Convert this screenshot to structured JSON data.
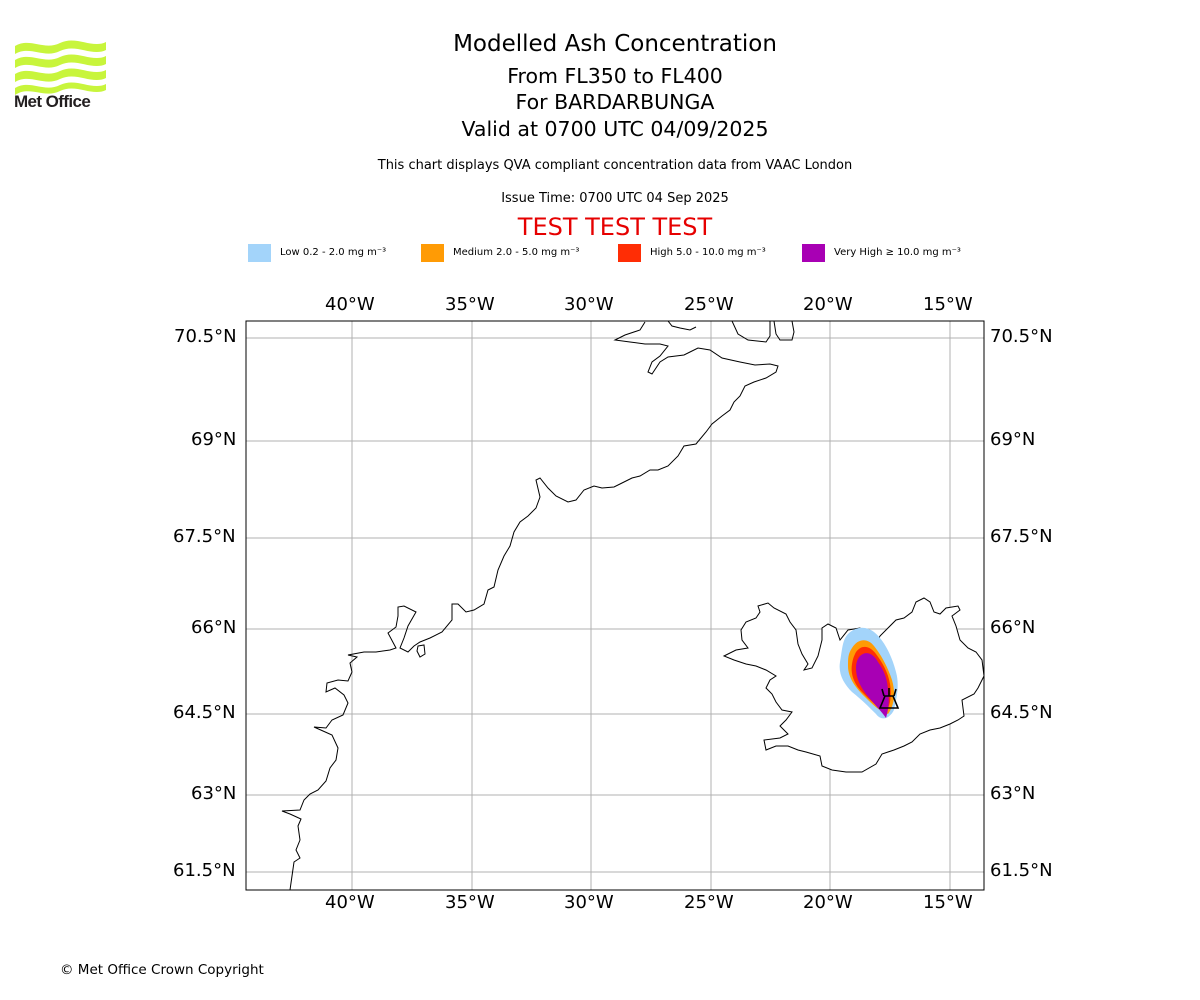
{
  "logo": {
    "brand_text": "Met Office",
    "wave_color": "#c8f53c",
    "text_color": "#231f20"
  },
  "header": {
    "title": "Modelled Ash Concentration",
    "flight_levels": "From FL350 to FL400",
    "volcano": "For BARDARBUNGA",
    "valid_time": "Valid at 0700 UTC 04/09/2025",
    "description": "This chart displays QVA compliant concentration data from VAAC London",
    "issue_time": "Issue Time: 0700 UTC 04 Sep 2025",
    "test_banner": "TEST TEST TEST",
    "test_banner_color": "#e60000"
  },
  "legend": [
    {
      "label": "Low 0.2 - 2.0 mg m⁻³",
      "color": "#a3d4fa"
    },
    {
      "label": "Medium 2.0 - 5.0 mg m⁻³",
      "color": "#ff9b05"
    },
    {
      "label": "High 5.0 - 10.0 mg m⁻³",
      "color": "#ff2d05"
    },
    {
      "label": "Very High ≥ 10.0 mg m⁻³",
      "color": "#a800b4"
    }
  ],
  "map": {
    "longitude_ticks": [
      "40°W",
      "35°W",
      "30°W",
      "25°W",
      "20°W",
      "15°W"
    ],
    "latitude_ticks": [
      "70.5°N",
      "69°N",
      "67.5°N",
      "66°N",
      "64.5°N",
      "63°N",
      "61.5°N"
    ],
    "gridline_color": "#b0b0b0",
    "coastline_color": "#000000",
    "volcano_marker": "volcano-icon"
  },
  "footer": {
    "copyright": "© Met Office Crown Copyright"
  }
}
